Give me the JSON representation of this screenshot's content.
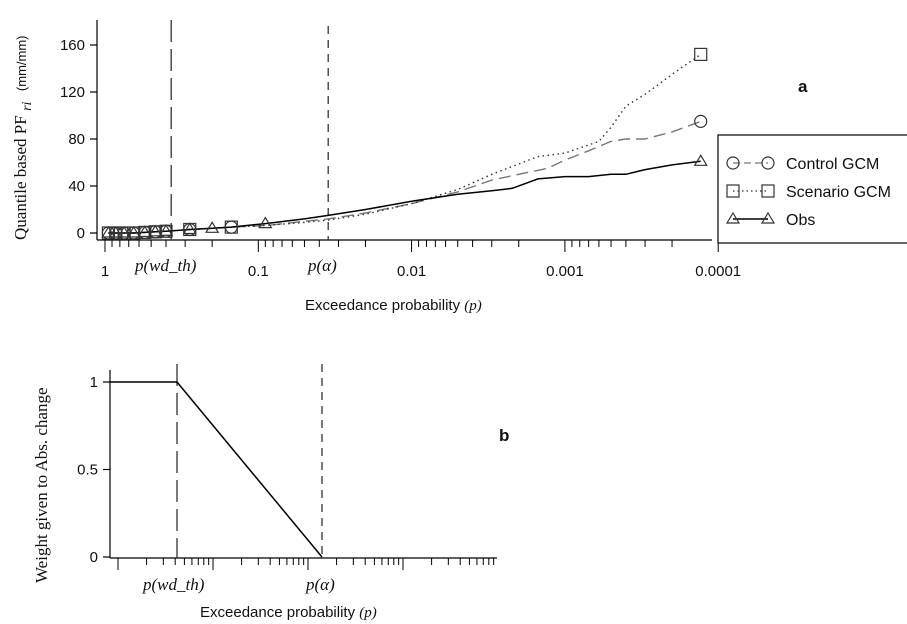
{
  "chart_data": [
    {
      "panel_label": "a",
      "type": "line",
      "ylabel": "Quantile based PF",
      "ylabel_sub": "ri",
      "ylabel_unit": "(mm/mm)",
      "xlabel": "Exceedance probability",
      "xlabel_var": "(p)",
      "x_scale": "log-reversed",
      "xlim": [
        1,
        0.0001
      ],
      "ylim": [
        0,
        160
      ],
      "x_tick_labels": [
        "1",
        "0.1",
        "0.01",
        "0.001",
        "0.0001"
      ],
      "y_tick_labels": [
        "0",
        "40",
        "80",
        "120",
        "160"
      ],
      "grid": false,
      "legend_position": "right",
      "annotations": [
        {
          "text": "p(wd_th)",
          "x": 0.37
        },
        {
          "text": "p(α)",
          "x": 0.035
        }
      ],
      "series": [
        {
          "name": "Control GCM",
          "style": "dashed",
          "color": "#777777",
          "marker": "circle",
          "x": [
            0.95,
            0.85,
            0.75,
            0.65,
            0.55,
            0.47,
            0.4,
            0.36,
            0.28,
            0.2,
            0.15,
            0.1,
            0.08,
            0.05,
            0.035,
            0.02,
            0.01,
            0.005,
            0.003,
            0.002,
            0.0013,
            0.001,
            0.0007,
            0.0005,
            0.0004,
            0.0003,
            0.0002,
            0.00013
          ],
          "y": [
            0,
            0,
            0,
            0,
            0.5,
            1,
            1.5,
            2,
            3,
            4,
            5,
            6,
            7,
            10,
            12,
            17,
            25,
            35,
            45,
            50,
            55,
            62,
            70,
            78,
            80,
            80,
            86,
            95
          ],
          "markers_x": [
            0.95,
            0.85,
            0.75,
            0.65,
            0.55,
            0.47,
            0.4,
            0.28,
            0.15,
            0.00013
          ],
          "markers_y": [
            0,
            0,
            0,
            0,
            0.5,
            1,
            1.5,
            3,
            5,
            95
          ]
        },
        {
          "name": "Scenario GCM",
          "style": "dotted",
          "color": "#333333",
          "marker": "square",
          "x": [
            0.95,
            0.85,
            0.75,
            0.65,
            0.55,
            0.47,
            0.4,
            0.36,
            0.28,
            0.2,
            0.15,
            0.1,
            0.08,
            0.05,
            0.035,
            0.02,
            0.01,
            0.005,
            0.003,
            0.0015,
            0.001,
            0.0006,
            0.0005,
            0.0004,
            0.0003,
            0.0002,
            0.00013
          ],
          "y": [
            0,
            0,
            0,
            0,
            0.5,
            1,
            1.5,
            2,
            3,
            4,
            5,
            6,
            7,
            9,
            11,
            16,
            25,
            37,
            50,
            65,
            68,
            78,
            90,
            108,
            118,
            135,
            152
          ],
          "markers_x": [
            0.95,
            0.85,
            0.75,
            0.65,
            0.55,
            0.47,
            0.4,
            0.28,
            0.15,
            0.00013
          ],
          "markers_y": [
            0,
            0,
            0,
            0,
            0.5,
            1,
            1.5,
            3,
            5,
            152
          ]
        },
        {
          "name": "Obs",
          "style": "solid",
          "color": "#000000",
          "marker": "triangle",
          "x": [
            0.95,
            0.85,
            0.75,
            0.65,
            0.55,
            0.47,
            0.4,
            0.36,
            0.28,
            0.2,
            0.15,
            0.09,
            0.05,
            0.035,
            0.02,
            0.01,
            0.005,
            0.003,
            0.0022,
            0.0015,
            0.001,
            0.0007,
            0.0005,
            0.0004,
            0.0003,
            0.0002,
            0.00013
          ],
          "y": [
            0,
            0,
            0,
            0,
            0.5,
            1,
            1.5,
            2,
            3,
            4,
            5,
            8,
            12,
            15,
            20,
            27,
            33,
            36,
            38,
            46,
            48,
            48,
            50,
            50,
            54,
            58,
            61
          ],
          "markers_x": [
            0.95,
            0.85,
            0.75,
            0.65,
            0.55,
            0.47,
            0.4,
            0.28,
            0.2,
            0.09,
            0.00013
          ],
          "markers_y": [
            0,
            0,
            0,
            0,
            0.5,
            1,
            1.5,
            3,
            4,
            8,
            61
          ]
        }
      ]
    },
    {
      "panel_label": "b",
      "type": "line",
      "ylabel": "Weight given to Abs. change",
      "xlabel": "Exceedance probability",
      "xlabel_var": "(p)",
      "ylim": [
        0,
        1
      ],
      "y_tick_labels": [
        "0",
        "0.5",
        "1"
      ],
      "grid": false,
      "annotations": [
        {
          "text": "p(wd_th)",
          "x": "p(wd_th)"
        },
        {
          "text": "p(α)",
          "x": "p(α)"
        }
      ],
      "series": [
        {
          "style": "solid",
          "color": "#000000",
          "x": [
            "start",
            "p(wd_th)",
            "p(α)"
          ],
          "y": [
            1,
            1,
            0
          ]
        }
      ]
    }
  ]
}
